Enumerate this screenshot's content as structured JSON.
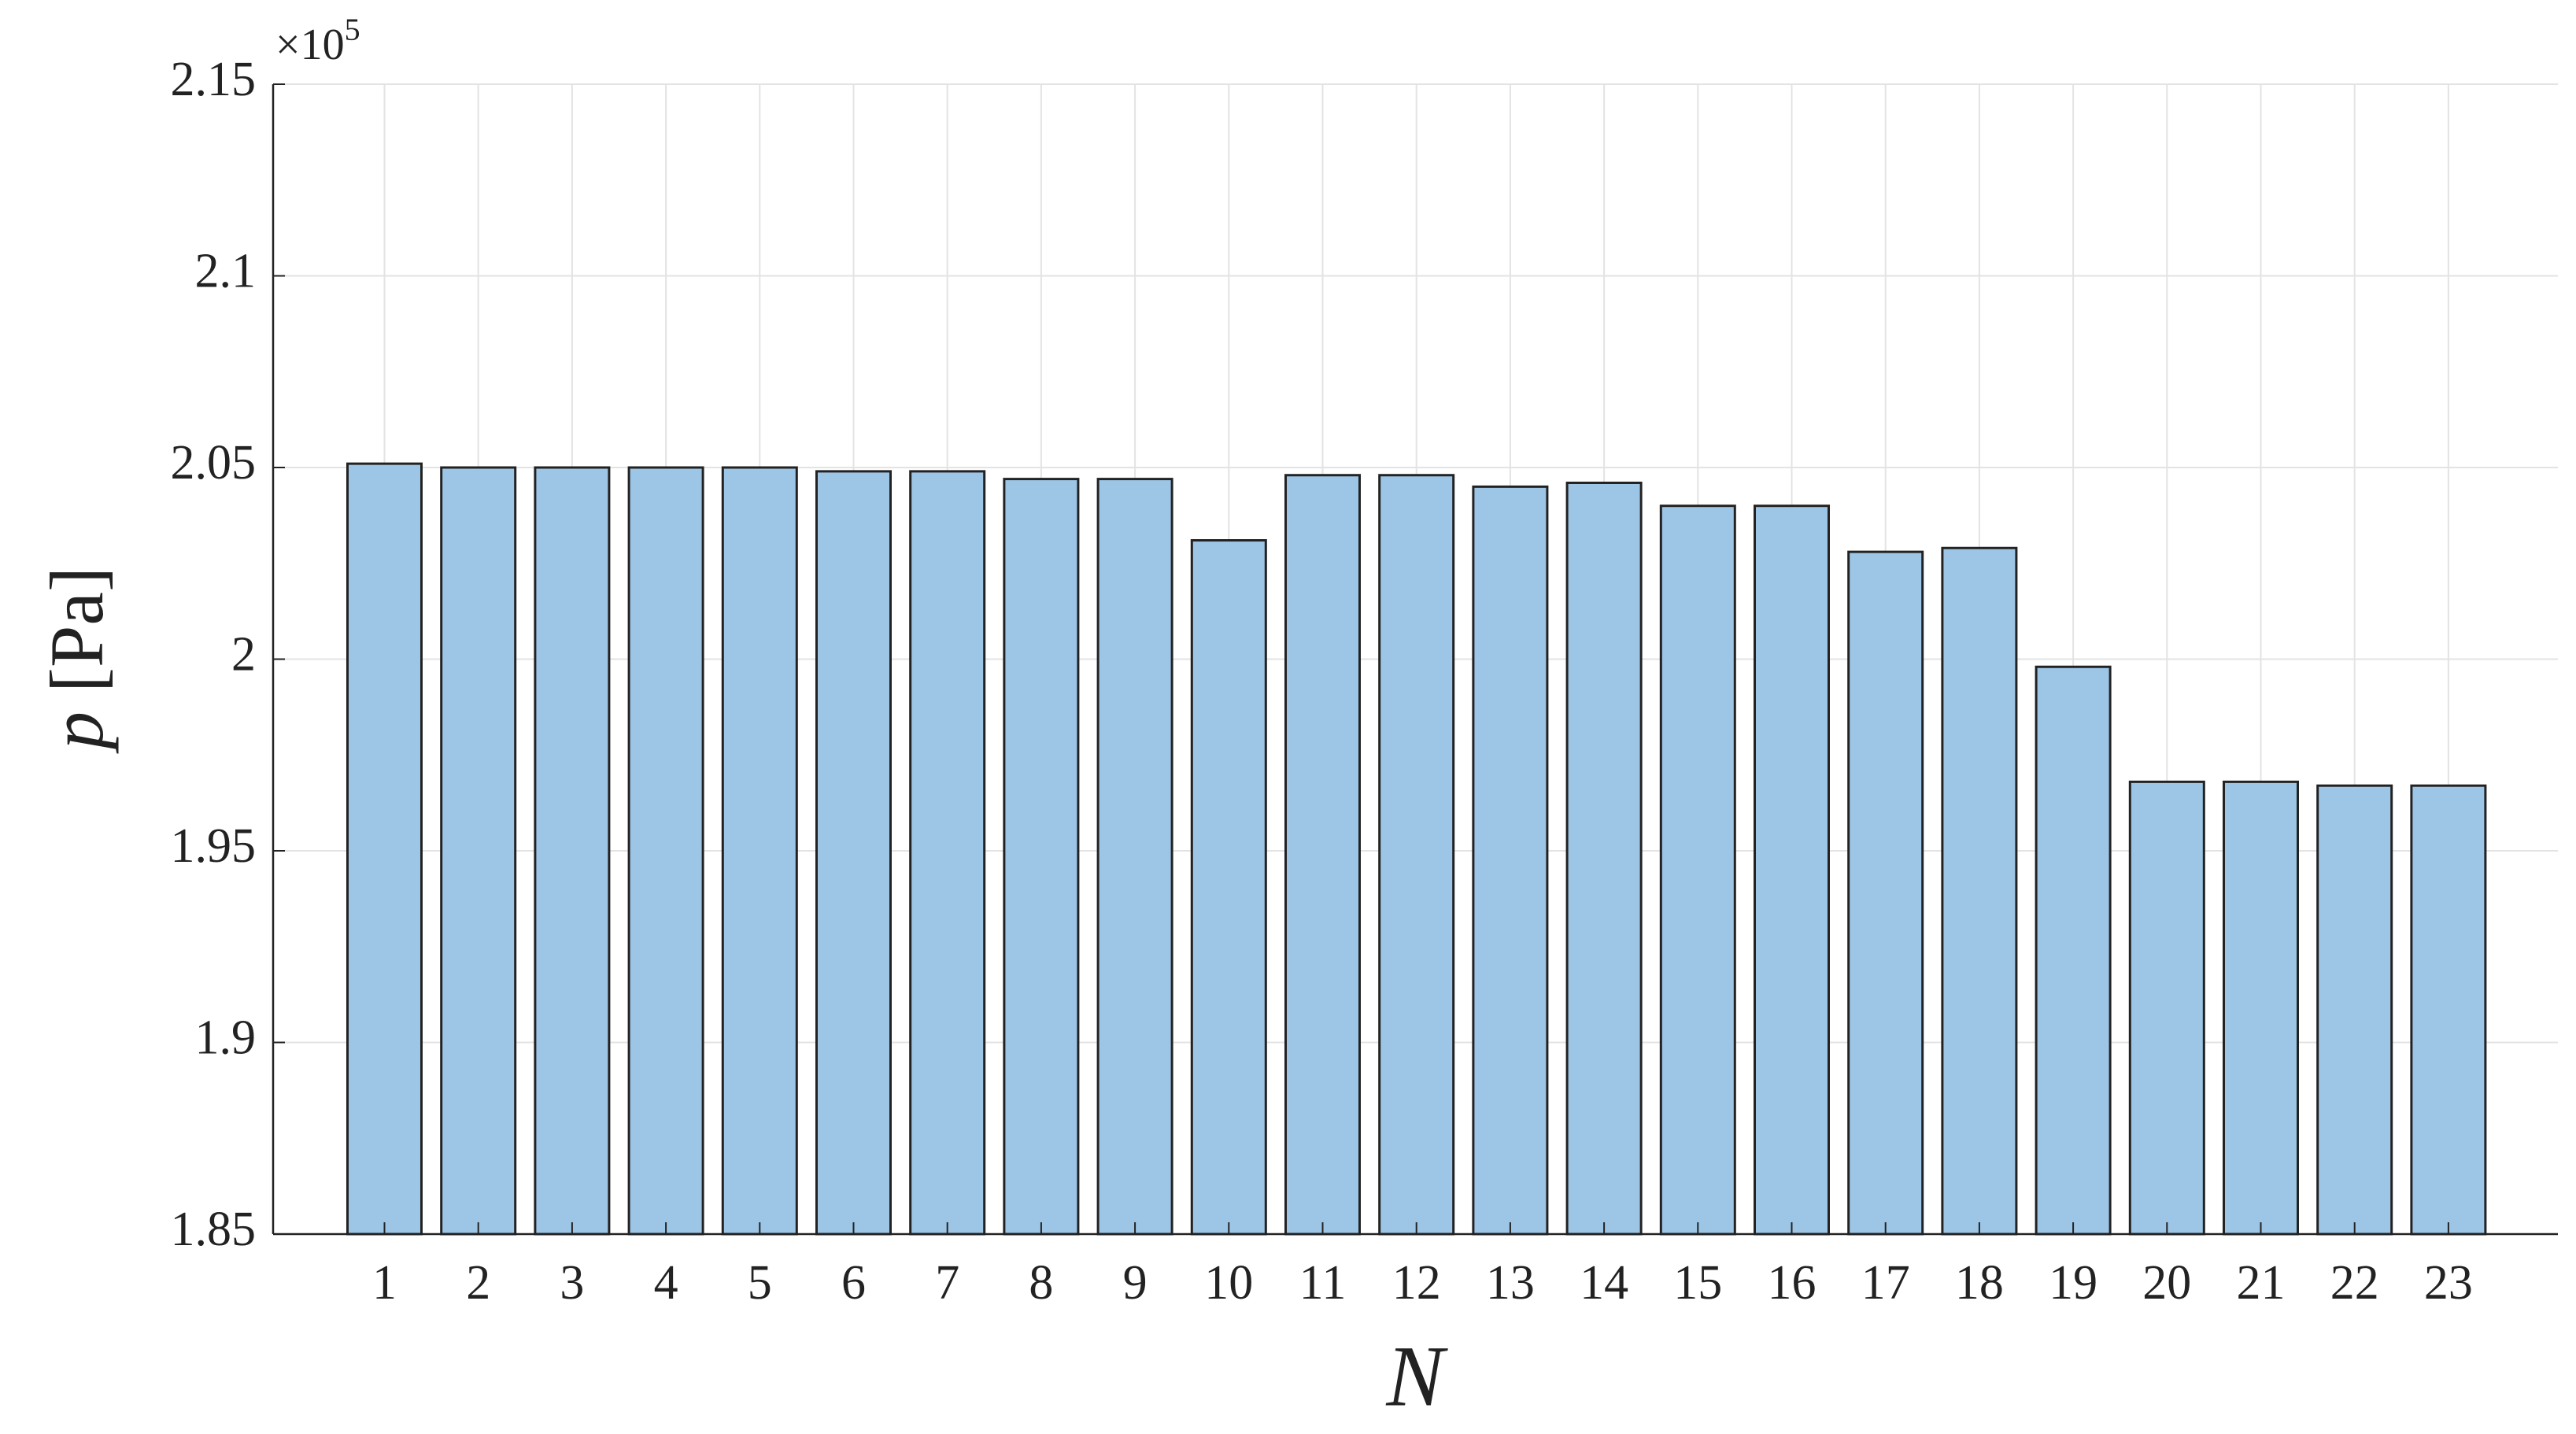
{
  "chart_data": {
    "type": "bar",
    "xlabel": "N",
    "ylabel_symbol": "p",
    "ylabel_unit": "[Pa]",
    "y_multiplier_base": "×10",
    "y_multiplier_exponent": "5",
    "categories": [
      "1",
      "2",
      "3",
      "4",
      "5",
      "6",
      "7",
      "8",
      "9",
      "10",
      "11",
      "12",
      "13",
      "14",
      "15",
      "16",
      "17",
      "18",
      "19",
      "20",
      "21",
      "22",
      "23"
    ],
    "values": [
      2.051,
      2.05,
      2.05,
      2.05,
      2.05,
      2.049,
      2.049,
      2.047,
      2.047,
      2.031,
      2.048,
      2.048,
      2.045,
      2.046,
      2.04,
      2.04,
      2.028,
      2.029,
      1.998,
      1.968,
      1.968,
      1.967,
      1.967
    ],
    "color": "#9dc6e6",
    "edge_color": "#222222",
    "ylim": [
      1.85,
      2.15
    ],
    "yticks": [
      1.85,
      1.9,
      1.95,
      2,
      2.05,
      2.1,
      2.15
    ],
    "grid": true
  }
}
